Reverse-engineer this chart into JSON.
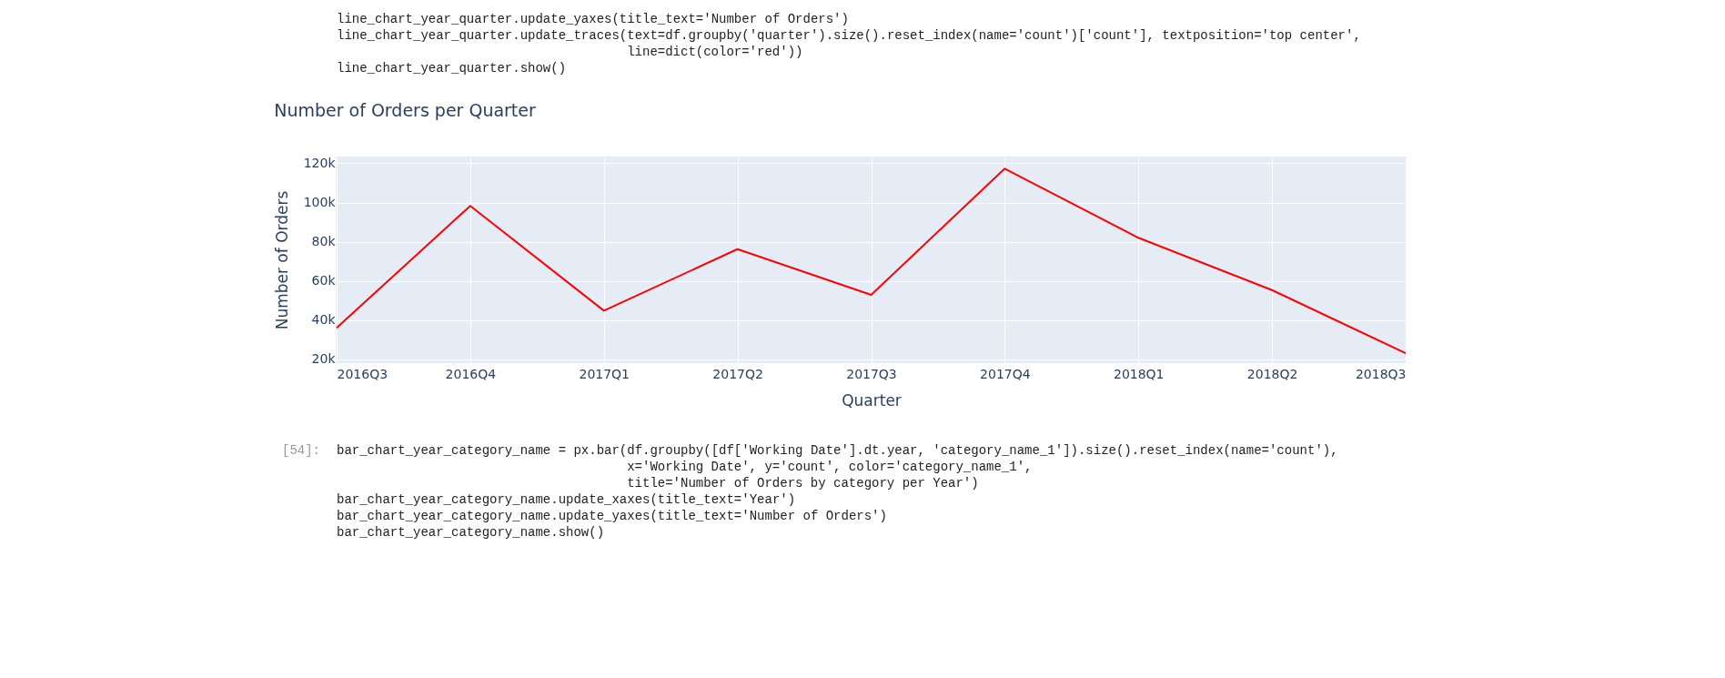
{
  "chart_data": {
    "type": "line",
    "title": "Number of Orders per Quarter",
    "xlabel": "Quarter",
    "ylabel": "Number of Orders",
    "categories": [
      "2016Q3",
      "2016Q4",
      "2017Q1",
      "2017Q2",
      "2017Q3",
      "2017Q4",
      "2018Q1",
      "2018Q2",
      "2018Q3"
    ],
    "series": [
      {
        "color": "#ff0000",
        "values": [
          36000,
          98300,
          44800,
          76200,
          52900,
          117300,
          82000,
          55300,
          23100
        ]
      }
    ],
    "ylim": [
      18500,
      123000
    ],
    "yticks": [
      {
        "value": 20000,
        "label": "20k"
      },
      {
        "value": 40000,
        "label": "40k"
      },
      {
        "value": 60000,
        "label": "60k"
      },
      {
        "value": 80000,
        "label": "80k"
      },
      {
        "value": 100000,
        "label": "100k"
      },
      {
        "value": 120000,
        "label": "120k"
      }
    ],
    "grid": true,
    "marker": "none",
    "line_style": "solid",
    "annotations": [
      "line_chart_year_quarter.update_yaxes(title_text='Number of Orders')",
      "line_chart_year_quarter.update_traces(text=df.groupby('quarter').size().reset_index(name='count')['count'], textposition='top center',",
      "                                      line=dict(color='red'))",
      "line_chart_year_quarter.show()",
      "[54]:",
      "bar_chart_year_category_name = px.bar(df.groupby([df['Working Date'].dt.year, 'category_name_1']).size().reset_index(name='count'),",
      "                                      x='Working Date', y='count', color='category_name_1',",
      "                                      title='Number of Orders by category per Year')",
      "bar_chart_year_category_name.update_xaxes(title_text='Year')",
      "bar_chart_year_category_name.update_yaxes(title_text='Number of Orders')",
      "bar_chart_year_category_name.show()"
    ]
  }
}
